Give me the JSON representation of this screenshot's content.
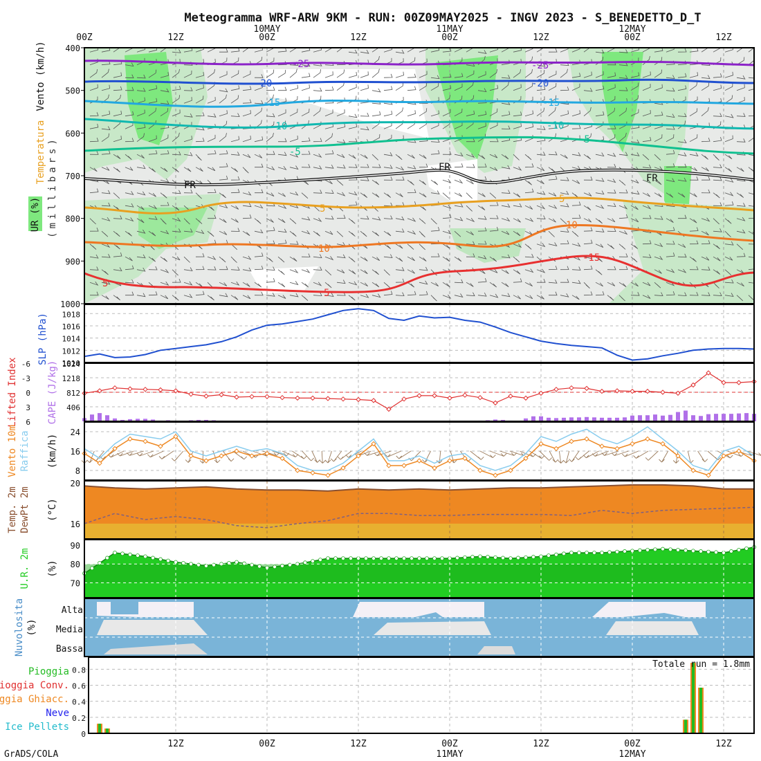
{
  "title": "Meteogramma WRF-ARW 9KM - RUN: 00Z09MAY2025 - INGV 2023 - S_BENEDETTO_D_T",
  "footer": "GrADS/COLA",
  "time_axis": {
    "hours": [
      0,
      12,
      24,
      36,
      48,
      60,
      72,
      84
    ],
    "labels": [
      "00Z",
      "12Z",
      "00Z",
      "12Z",
      "00Z",
      "12Z",
      "00Z",
      "12Z"
    ],
    "date_labels": [
      {
        "hour": 24,
        "label": "10MAY"
      },
      {
        "hour": 48,
        "label": "11MAY"
      },
      {
        "hour": 72,
        "label": "12MAY"
      }
    ],
    "bottom_labels": [
      "12Z",
      "00Z",
      "12Z",
      "00Z",
      "12Z",
      "00Z",
      "12Z"
    ],
    "bottom_hours": [
      12,
      24,
      36,
      48,
      60,
      72,
      84
    ],
    "bottom_dates": [
      {
        "hour": 48,
        "label": "11MAY"
      },
      {
        "hour": 72,
        "label": "12MAY"
      }
    ]
  },
  "panels": {
    "upper_air": {
      "labels": {
        "wind": "Vento (km/h)",
        "temp": "Temperatura",
        "rh": "UR (%)",
        "pressure": "(millibars)"
      },
      "pressure_ticks": [
        400,
        500,
        600,
        700,
        800,
        900,
        1000
      ],
      "freezing_label": "FR",
      "isotherm_labels": [
        "-25",
        "-20",
        "-15",
        "-10",
        "-5",
        "5",
        "10",
        "-15"
      ]
    },
    "slp": {
      "label": "SLP (hPa)",
      "ticks": [
        1010,
        1012,
        1014,
        1016,
        1018
      ]
    },
    "cape": {
      "label_li": "Lifted Index",
      "label_cape": "CAPE (J/kg)",
      "li_ticks": [
        "-6",
        "-3",
        "0",
        "3",
        "6"
      ],
      "cape_ticks": [
        406,
        812,
        1218,
        1624
      ]
    },
    "wind10": {
      "label_a": "Vento 10m",
      "label_b": "Raffica",
      "unit": "(km/h)",
      "ticks": [
        8,
        16,
        24
      ]
    },
    "temp2m": {
      "label_a": "Temp. 2m",
      "label_b": "DewPt 2m",
      "unit": "(°C)",
      "ticks": [
        16,
        20
      ]
    },
    "rh2m": {
      "label": "U.R. 2m",
      "unit": "(%)",
      "ticks": [
        70,
        80,
        90
      ]
    },
    "clouds": {
      "label": "Nuvolosita",
      "unit": "(%)",
      "levels": [
        "Alta",
        "Media",
        "Bassa"
      ]
    },
    "precip": {
      "legend": [
        {
          "label": "Pioggia",
          "color": "#22bb22"
        },
        {
          "label": "Pioggia Conv.",
          "color": "#e03030"
        },
        {
          "label": "Pioggia Ghiacc.",
          "color": "#ee8822"
        },
        {
          "label": "Neve",
          "color": "#2222ee"
        },
        {
          "label": "Ice Pellets",
          "color": "#22bbcc"
        }
      ],
      "total": "Totale run = 1.8mm",
      "ticks": [
        "0",
        "0.2",
        "0.4",
        "0.6",
        "0.8"
      ]
    }
  },
  "colors": {
    "slp": "#2050d0",
    "li": "#e03030",
    "cape": "#b070e8",
    "wind": "#ee8822",
    "gust": "#88ccee",
    "temp": "#ee8822",
    "dew": "#e8b030",
    "rh": "#22cc22",
    "cloud_bg": "#7ab4d8",
    "cloud": "#f0f0f0"
  },
  "chart_data": [
    {
      "type": "line",
      "title": "SLP (hPa)",
      "x_hours": [
        0,
        2,
        4,
        6,
        8,
        10,
        12,
        14,
        16,
        18,
        20,
        22,
        24,
        26,
        28,
        30,
        32,
        34,
        36,
        38,
        40,
        42,
        44,
        46,
        48,
        50,
        52,
        54,
        56,
        58,
        60,
        62,
        64,
        66,
        68,
        70,
        72,
        74,
        76,
        78,
        80,
        82,
        84,
        86,
        88
      ],
      "series": [
        {
          "name": "SLP",
          "values": [
            1011.0,
            1011.4,
            1010.8,
            1010.9,
            1011.3,
            1012.0,
            1012.3,
            1012.6,
            1012.9,
            1013.4,
            1014.2,
            1015.3,
            1016.1,
            1016.3,
            1016.7,
            1017.1,
            1017.8,
            1018.5,
            1018.8,
            1018.5,
            1017.2,
            1016.9,
            1017.6,
            1017.3,
            1017.4,
            1016.9,
            1016.6,
            1015.8,
            1014.9,
            1014.2,
            1013.5,
            1013.1,
            1012.8,
            1012.6,
            1012.4,
            1011.2,
            1010.4,
            1010.6,
            1011.1,
            1011.5,
            1012.0,
            1012.2,
            1012.3,
            1012.3,
            1012.2
          ]
        }
      ],
      "ylim": [
        1010,
        1019.5
      ]
    },
    {
      "type": "bar",
      "title": "CAPE (J/kg)",
      "x_hours": [
        0,
        1,
        2,
        3,
        4,
        5,
        6,
        7,
        8,
        9,
        10,
        11,
        12,
        14,
        15,
        16,
        17,
        18,
        19,
        27,
        28,
        29,
        30,
        52,
        53,
        54,
        55,
        56,
        57,
        58,
        59,
        60,
        61,
        62,
        63,
        64,
        65,
        66,
        67,
        68,
        69,
        70,
        71,
        72,
        73,
        74,
        75,
        76,
        77,
        78,
        79,
        80,
        81,
        82,
        83,
        84,
        85,
        86,
        87,
        88
      ],
      "series": [
        {
          "name": "CAPE",
          "values": [
            90,
            190,
            230,
            170,
            80,
            40,
            60,
            70,
            70,
            50,
            20,
            30,
            10,
            30,
            40,
            40,
            30,
            20,
            10,
            5,
            5,
            5,
            5,
            20,
            30,
            50,
            40,
            20,
            10,
            80,
            140,
            140,
            100,
            90,
            100,
            110,
            110,
            120,
            110,
            100,
            100,
            100,
            110,
            160,
            170,
            170,
            190,
            160,
            180,
            260,
            300,
            170,
            150,
            200,
            210,
            210,
            210,
            220,
            230,
            210
          ]
        }
      ],
      "ylim": [
        0,
        406
      ]
    },
    {
      "type": "line",
      "title": "Lifted Index",
      "x_hours": [
        0,
        2,
        4,
        6,
        8,
        10,
        12,
        14,
        16,
        18,
        20,
        22,
        24,
        26,
        28,
        30,
        32,
        34,
        36,
        38,
        40,
        42,
        44,
        46,
        48,
        50,
        52,
        54,
        56,
        58,
        60,
        62,
        64,
        66,
        68,
        70,
        72,
        74,
        76,
        78,
        80,
        82,
        84,
        86,
        88
      ],
      "series": [
        {
          "name": "LI",
          "values": [
            0.2,
            -0.3,
            -0.9,
            -0.7,
            -0.6,
            -0.5,
            -0.3,
            0.4,
            0.8,
            0.5,
            1.0,
            0.9,
            0.9,
            1.1,
            1.2,
            1.2,
            1.3,
            1.4,
            1.5,
            1.7,
            3.5,
            1.4,
            0.7,
            0.7,
            1.2,
            0.6,
            1.1,
            2.2,
            0.8,
            1.2,
            0.2,
            -0.6,
            -0.9,
            -0.8,
            -0.2,
            -0.3,
            -0.2,
            -0.2,
            0.0,
            0.2,
            -1.5,
            -4.0,
            -2.0,
            -2.0,
            -2.2
          ]
        }
      ],
      "ylim": [
        -6,
        6
      ]
    },
    {
      "type": "line",
      "title": "Vento 10m (km/h)",
      "x_hours": [
        0,
        2,
        4,
        6,
        8,
        10,
        12,
        14,
        16,
        18,
        20,
        22,
        24,
        26,
        28,
        30,
        32,
        34,
        36,
        38,
        40,
        42,
        44,
        46,
        48,
        50,
        52,
        54,
        56,
        58,
        60,
        62,
        64,
        66,
        68,
        70,
        72,
        74,
        76,
        78,
        80,
        82,
        84,
        86,
        88
      ],
      "series": [
        {
          "name": "Vento 10m",
          "values": [
            15,
            11,
            17,
            21,
            20,
            18,
            22,
            14,
            12,
            14,
            16,
            14,
            15,
            13,
            8,
            7,
            6,
            9,
            14,
            19,
            10,
            10,
            12,
            9,
            12,
            13,
            8,
            6,
            8,
            13,
            19,
            17,
            20,
            21,
            18,
            17,
            19,
            21,
            19,
            14,
            8,
            6,
            14,
            16,
            12
          ]
        },
        {
          "name": "Raffica",
          "values": [
            17,
            13,
            19,
            23,
            22,
            21,
            24,
            16,
            14,
            16,
            18,
            16,
            17,
            15,
            10,
            8,
            8,
            11,
            16,
            21,
            12,
            12,
            14,
            11,
            14,
            15,
            10,
            8,
            10,
            15,
            22,
            20,
            23,
            25,
            21,
            19,
            22,
            26,
            21,
            16,
            10,
            8,
            16,
            18,
            14
          ]
        }
      ],
      "ylim": [
        4,
        28
      ]
    },
    {
      "type": "area",
      "title": "Temp. 2m / DewPt 2m (°C)",
      "x_hours": [
        0,
        4,
        8,
        12,
        16,
        20,
        24,
        28,
        32,
        36,
        40,
        44,
        48,
        52,
        56,
        60,
        64,
        68,
        72,
        76,
        80,
        84,
        88
      ],
      "series": [
        {
          "name": "Temp. 2m",
          "values": [
            19.7,
            19.5,
            19.4,
            19.5,
            19.6,
            19.4,
            19.3,
            19.3,
            19.2,
            19.4,
            19.3,
            19.4,
            19.3,
            19.4,
            19.5,
            19.5,
            19.6,
            19.7,
            19.8,
            19.8,
            19.7,
            19.4,
            19.4
          ]
        },
        {
          "name": "DewPt 2m",
          "values": [
            16.0,
            17.0,
            16.4,
            16.7,
            16.4,
            15.8,
            15.6,
            16.0,
            16.3,
            17.0,
            17.0,
            16.8,
            16.8,
            16.9,
            16.9,
            16.9,
            16.8,
            17.3,
            17.0,
            17.3,
            17.4,
            17.5,
            17.6
          ]
        }
      ],
      "ylim": [
        14.5,
        20.2
      ]
    },
    {
      "type": "area",
      "title": "U.R. 2m (%)",
      "x_hours": [
        0,
        4,
        8,
        12,
        16,
        20,
        24,
        28,
        32,
        36,
        40,
        44,
        48,
        52,
        56,
        60,
        64,
        68,
        72,
        76,
        80,
        84,
        88
      ],
      "series": [
        {
          "name": "U.R. 2m",
          "values": [
            75,
            86,
            84,
            81,
            79,
            81,
            78,
            80,
            83,
            83,
            83,
            83,
            83,
            84,
            83,
            84,
            86,
            86,
            87,
            88,
            87,
            86,
            89
          ]
        }
      ],
      "ylim": [
        62,
        93
      ]
    },
    {
      "type": "bar",
      "title": "Precipitazione (mm)",
      "x_hours": [
        2,
        3,
        79,
        80,
        81
      ],
      "series": [
        {
          "name": "Pioggia",
          "values": [
            0.12,
            0.06,
            0.17,
            0.88,
            0.57
          ]
        }
      ],
      "ylim": [
        0,
        0.95
      ]
    }
  ]
}
